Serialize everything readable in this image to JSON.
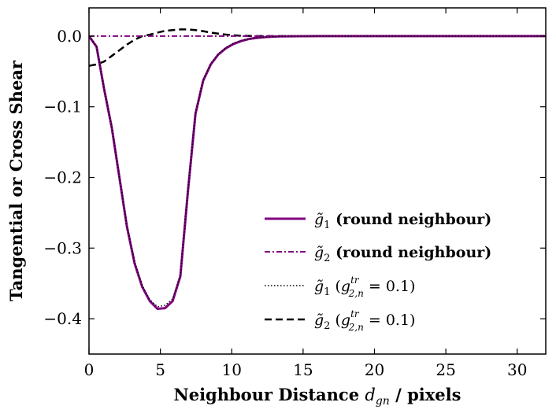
{
  "chart_data": {
    "type": "line",
    "title": "",
    "xlabel": "Neighbour Distance d_gn / pixels",
    "xlabel_parts": {
      "bold": "Neighbour Distance ",
      "math_main": "d",
      "math_sub": "gn",
      "tail": " / pixels"
    },
    "ylabel": "Tangential or Cross Shear",
    "xlim": [
      0,
      32
    ],
    "ylim": [
      -0.45,
      0.04
    ],
    "xticks": [
      0,
      5,
      10,
      15,
      20,
      25,
      30
    ],
    "xtick_labels": [
      "0",
      "5",
      "10",
      "15",
      "20",
      "25",
      "30"
    ],
    "yticks": [
      0.0,
      -0.1,
      -0.2,
      -0.3,
      -0.4
    ],
    "ytick_labels": [
      "0.0",
      "−0.1",
      "−0.2",
      "−0.3",
      "−0.4"
    ],
    "grid": false,
    "legend_position": "lower-right",
    "series": [
      {
        "name": "g̃₁ (round neighbour)",
        "legend": {
          "sym": "g̃",
          "sub": "1",
          "sup": "",
          "rest": " (round neighbour)",
          "bold": true
        },
        "color": "#800080",
        "style": "solid",
        "width": 3,
        "x": [
          0,
          0.53,
          1.06,
          1.6,
          2.13,
          2.66,
          3.2,
          3.73,
          4.26,
          4.8,
          5.33,
          5.86,
          6.4,
          6.93,
          7.46,
          8.0,
          8.53,
          9.06,
          9.6,
          10.13,
          10.66,
          11.2,
          11.73,
          12.26,
          12.8,
          13.33,
          14.0,
          15.0,
          16.0,
          18.0,
          20.0,
          24.0,
          28.0,
          32.0
        ],
        "y": [
          0.0,
          -0.015,
          -0.075,
          -0.13,
          -0.2,
          -0.27,
          -0.322,
          -0.355,
          -0.375,
          -0.386,
          -0.385,
          -0.375,
          -0.34,
          -0.22,
          -0.11,
          -0.063,
          -0.04,
          -0.026,
          -0.017,
          -0.011,
          -0.007,
          -0.004,
          -0.0025,
          -0.0015,
          -0.0008,
          -0.0004,
          -0.0002,
          -0.0001,
          0.0,
          0.0,
          0.0,
          0.0,
          0.0,
          0.0
        ]
      },
      {
        "name": "g̃₂ (round neighbour)",
        "legend": {
          "sym": "g̃",
          "sub": "2",
          "sup": "",
          "rest": " (round neighbour)",
          "bold": true
        },
        "color": "#800080",
        "style": "dashdot",
        "width": 2,
        "x": [
          0,
          2,
          4,
          6,
          8,
          10,
          14,
          20,
          26,
          32
        ],
        "y": [
          0.0,
          0.0,
          0.0,
          0.0,
          0.0,
          0.0,
          0.0,
          0.0,
          0.0,
          0.0
        ]
      },
      {
        "name": "g̃₁ (g^tr_2,n = 0.1)",
        "legend": {
          "sym": "g̃",
          "sub": "1",
          "sup_main": "g",
          "sup_sup": "tr",
          "sup_sub": "2,n",
          "rest": " = 0.1)",
          "bold": false
        },
        "color": "#000000",
        "style": "dotted",
        "width": 1.5,
        "x": [
          0,
          0.53,
          1.06,
          1.6,
          2.13,
          2.66,
          3.2,
          3.73,
          4.26,
          4.8,
          5.33,
          5.86,
          6.4,
          6.93,
          7.46,
          8.0,
          8.53,
          9.06,
          9.6,
          10.13,
          10.66,
          11.2,
          11.73,
          12.26,
          12.8,
          13.33,
          14.0,
          15.0,
          16.0,
          18.0,
          20.0,
          24.0,
          28.0,
          32.0
        ],
        "y": [
          0.0,
          -0.015,
          -0.074,
          -0.129,
          -0.199,
          -0.268,
          -0.32,
          -0.353,
          -0.373,
          -0.383,
          -0.381,
          -0.372,
          -0.338,
          -0.218,
          -0.109,
          -0.062,
          -0.039,
          -0.025,
          -0.016,
          -0.01,
          -0.006,
          -0.004,
          -0.0025,
          -0.0015,
          -0.0008,
          -0.0004,
          -0.0002,
          -0.0001,
          0.0,
          0.0,
          0.0,
          0.0,
          0.0,
          0.0
        ]
      },
      {
        "name": "g̃₂ (g^tr_2,n = 0.1)",
        "legend": {
          "sym": "g̃",
          "sub": "2",
          "sup_main": "g",
          "sup_sup": "tr",
          "sup_sub": "2,n",
          "rest": " = 0.1)",
          "bold": false
        },
        "color": "#000000",
        "style": "dashed",
        "width": 2.5,
        "x": [
          0,
          0.53,
          1.06,
          1.6,
          2.13,
          2.66,
          3.2,
          3.73,
          4.26,
          4.8,
          5.33,
          5.86,
          6.4,
          6.93,
          7.46,
          8.0,
          8.53,
          9.06,
          9.6,
          10.13,
          10.66,
          11.2,
          11.73,
          12.26,
          12.8,
          13.33,
          14.0,
          15.0,
          16.0,
          18.0,
          20.0,
          24.0,
          28.0,
          32.0
        ],
        "y": [
          -0.042,
          -0.04,
          -0.036,
          -0.028,
          -0.02,
          -0.012,
          -0.005,
          0.0,
          0.002,
          0.005,
          0.0075,
          0.0085,
          0.0095,
          0.0095,
          0.0085,
          0.007,
          0.005,
          0.0035,
          0.0022,
          0.0012,
          0.0006,
          0.0003,
          0.0001,
          0.0,
          0.0,
          0.0,
          0.0,
          0.0,
          0.0,
          0.0,
          0.0,
          0.0,
          0.0,
          0.0
        ]
      }
    ]
  }
}
